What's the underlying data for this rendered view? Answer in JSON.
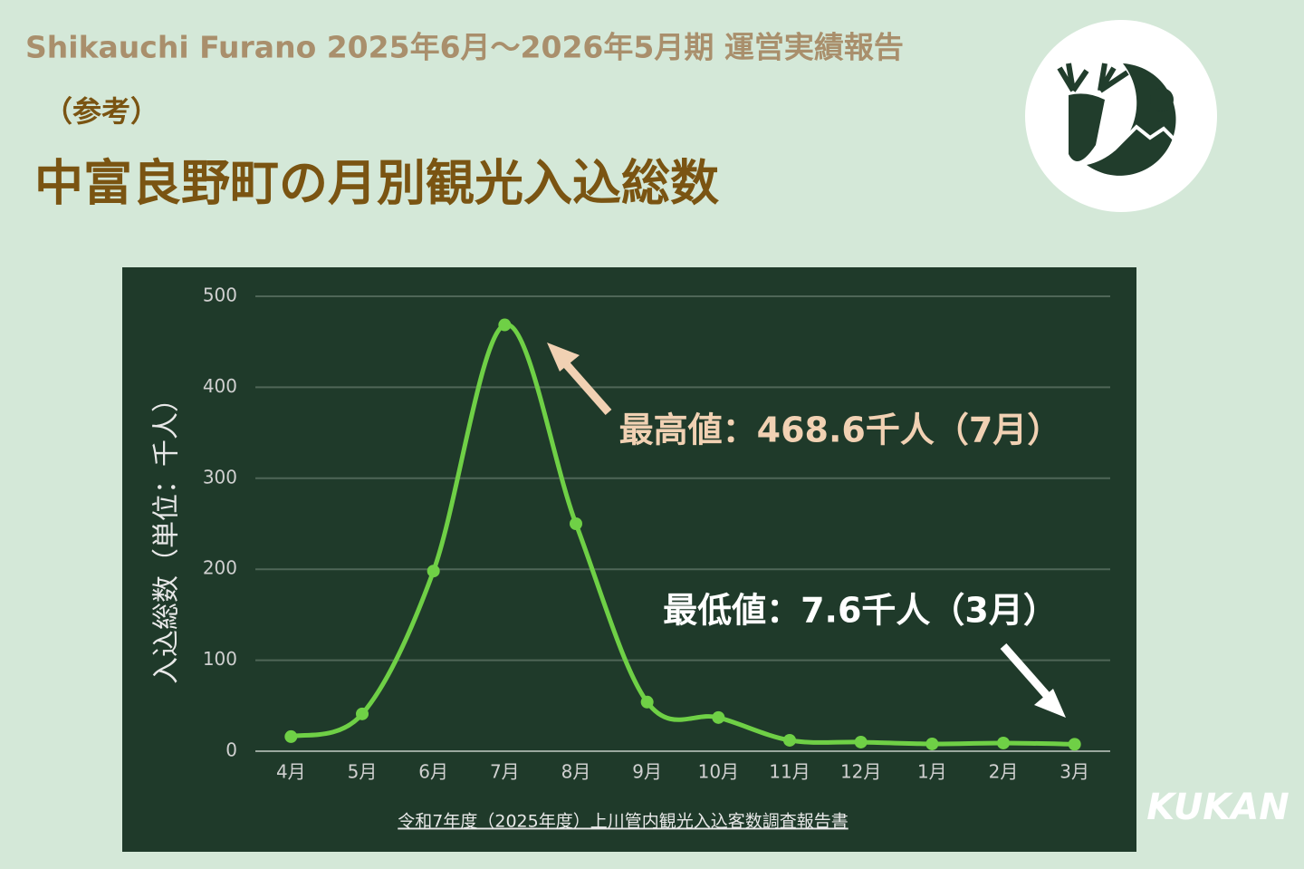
{
  "header": {
    "subtitle": "Shikauchi Furano 2025年6月～2026年5月期 運営実績報告",
    "note": "（参考）",
    "title": "中富良野町の月別観光入込総数"
  },
  "chart_data": {
    "type": "line",
    "color": "#6fd046",
    "categories": [
      "4月",
      "5月",
      "6月",
      "7月",
      "8月",
      "9月",
      "10月",
      "11月",
      "12月",
      "1月",
      "2月",
      "3月"
    ],
    "values": [
      16,
      41,
      198,
      468.6,
      250,
      54,
      37,
      12,
      10,
      8,
      9,
      7.6
    ],
    "ylabel": "入込総数（単位：千人）",
    "ylim": [
      0,
      500
    ],
    "yticks": [
      0,
      100,
      200,
      300,
      400,
      500
    ],
    "grid": true,
    "annotations": [
      "最高値：468.6千人（7月）",
      "最低値：7.6千人（3月）"
    ],
    "source": "令和7年度（2025年度）上川管内観光入込客数調査報告書"
  },
  "brand": "KUKAN"
}
